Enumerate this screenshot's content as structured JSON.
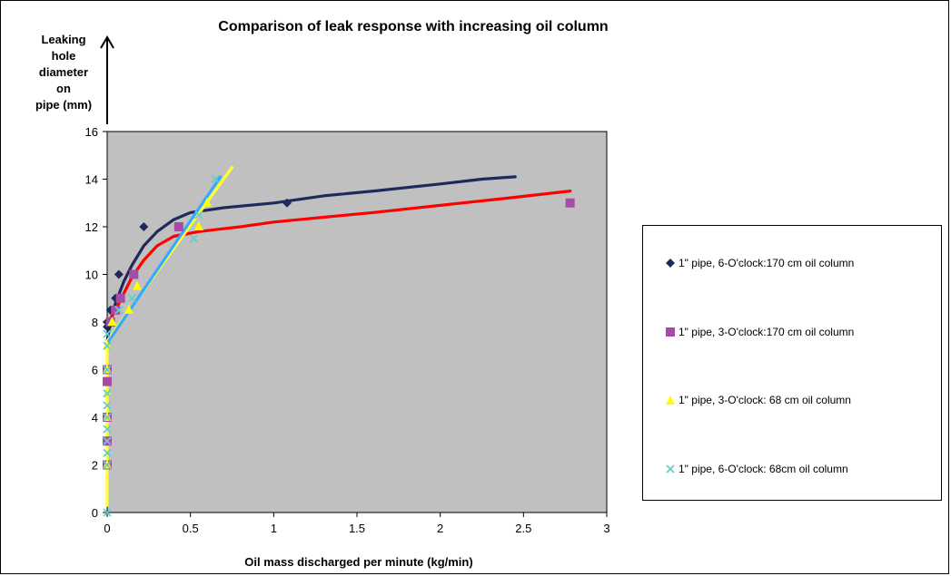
{
  "chart_data": {
    "type": "scatter",
    "title": "Comparison of leak response with increasing oil column",
    "ylabel": [
      "Leaking",
      "hole",
      "diameter",
      "on",
      "pipe (mm)"
    ],
    "xlabel": "Oil mass discharged per minute (kg/min)",
    "xlim": [
      0,
      3
    ],
    "ylim": [
      0,
      16
    ],
    "xticks": [
      0,
      0.5,
      1,
      1.5,
      2,
      2.5,
      3
    ],
    "xtick_labels": [
      "0",
      "0.5",
      "1",
      "1.5",
      "2",
      "2.5",
      "3"
    ],
    "yticks": [
      0,
      2,
      4,
      6,
      8,
      10,
      12,
      14,
      16
    ],
    "ytick_labels": [
      "0",
      "2",
      "4",
      "6",
      "8",
      "10",
      "12",
      "14",
      "16"
    ],
    "plot_background": "#c0c0c0",
    "legend_position": "right",
    "series": [
      {
        "name": "1\" pipe,  6-O'clock:170 cm oil column",
        "marker": "diamond",
        "color": "#1f2a5c",
        "points": [
          [
            0,
            7.8
          ],
          [
            0,
            8
          ],
          [
            0.02,
            8.5
          ],
          [
            0.05,
            9
          ],
          [
            0.07,
            10
          ],
          [
            0.22,
            12
          ],
          [
            1.08,
            13
          ]
        ],
        "trend_color": "#1f2a5c",
        "trend": [
          [
            0,
            7.2
          ],
          [
            0.02,
            8.0
          ],
          [
            0.05,
            8.8
          ],
          [
            0.1,
            9.7
          ],
          [
            0.15,
            10.4
          ],
          [
            0.22,
            11.2
          ],
          [
            0.3,
            11.8
          ],
          [
            0.4,
            12.3
          ],
          [
            0.5,
            12.6
          ],
          [
            0.7,
            12.8
          ],
          [
            1.0,
            13.0
          ],
          [
            1.3,
            13.3
          ],
          [
            1.6,
            13.5
          ],
          [
            2.0,
            13.8
          ],
          [
            2.25,
            14.0
          ],
          [
            2.45,
            14.1
          ]
        ]
      },
      {
        "name": "1\" pipe, 3-O'clock:170 cm oil column",
        "marker": "square",
        "color": "#a64ca6",
        "points": [
          [
            0,
            2
          ],
          [
            0,
            3
          ],
          [
            0,
            4
          ],
          [
            0,
            5.5
          ],
          [
            0,
            6
          ],
          [
            0.02,
            8
          ],
          [
            0.05,
            8.5
          ],
          [
            0.08,
            9
          ],
          [
            0.16,
            10
          ],
          [
            0.43,
            12
          ],
          [
            2.78,
            13
          ]
        ],
        "trend_color": "#ff0000",
        "trend": [
          [
            0,
            7.9
          ],
          [
            0.05,
            8.5
          ],
          [
            0.1,
            9.2
          ],
          [
            0.15,
            9.9
          ],
          [
            0.22,
            10.6
          ],
          [
            0.3,
            11.2
          ],
          [
            0.4,
            11.6
          ],
          [
            0.55,
            11.8
          ],
          [
            0.8,
            12.0
          ],
          [
            1.0,
            12.2
          ],
          [
            1.3,
            12.4
          ],
          [
            1.6,
            12.6
          ],
          [
            2.0,
            12.9
          ],
          [
            2.4,
            13.2
          ],
          [
            2.78,
            13.5
          ]
        ]
      },
      {
        "name": "1\" pipe, 3-O'clock: 68 cm oil column",
        "marker": "triangle",
        "color": "#ffff00",
        "points": [
          [
            0,
            2
          ],
          [
            0,
            4
          ],
          [
            0,
            5
          ],
          [
            0,
            6
          ],
          [
            0,
            7
          ],
          [
            0.03,
            8
          ],
          [
            0.13,
            8.5
          ],
          [
            0.18,
            9.5
          ],
          [
            0.55,
            12
          ],
          [
            0.6,
            13
          ]
        ],
        "trend_color": "#ffff33",
        "trend": [
          [
            0,
            0.3
          ],
          [
            0,
            7.2
          ],
          [
            0.75,
            14.5
          ]
        ]
      },
      {
        "name": "1\" pipe, 6-O'clock: 68cm oil column",
        "marker": "x",
        "color": "#66cccc",
        "points": [
          [
            0,
            0
          ],
          [
            0,
            2
          ],
          [
            0,
            2.5
          ],
          [
            0,
            3
          ],
          [
            0,
            3.5
          ],
          [
            0,
            4
          ],
          [
            0,
            4.5
          ],
          [
            0,
            5
          ],
          [
            0,
            6
          ],
          [
            0,
            7
          ],
          [
            0,
            7.5
          ],
          [
            0.07,
            8.5
          ],
          [
            0.15,
            9
          ],
          [
            0.52,
            11.5
          ],
          [
            0.55,
            12.5
          ],
          [
            0.65,
            14
          ]
        ],
        "trend_color": "#33aaff",
        "trend": [
          [
            0,
            7.1
          ],
          [
            0.68,
            14.1
          ]
        ]
      }
    ]
  }
}
